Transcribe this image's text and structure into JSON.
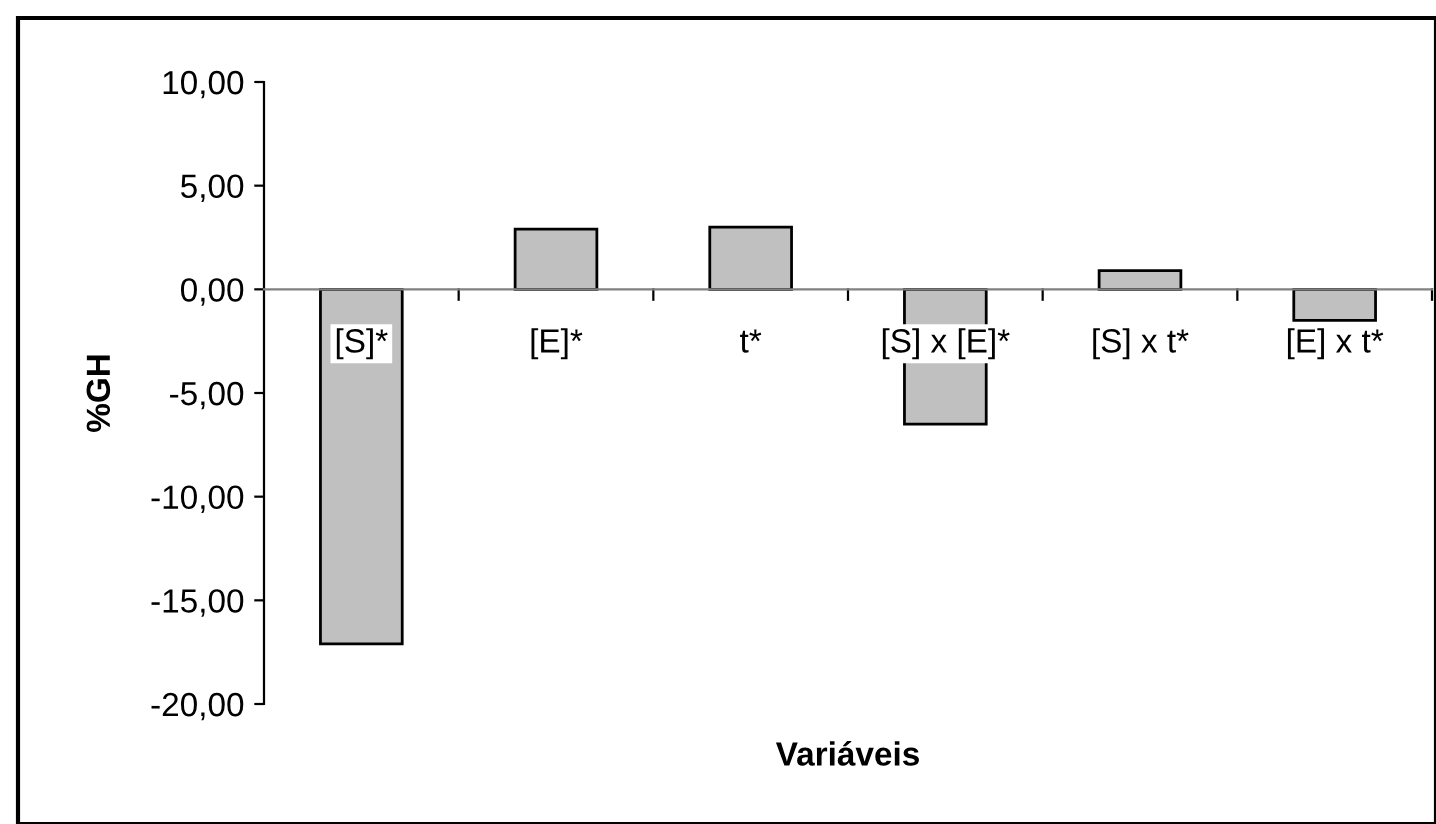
{
  "chart_data": {
    "type": "bar",
    "xlabel": "Variáveis",
    "ylabel": "%GH",
    "categories": [
      "[S]*",
      "[E]*",
      "t*",
      "[S] x [E]*",
      "[S] x t*",
      "[E] x t*"
    ],
    "values": [
      -17.1,
      2.9,
      3.0,
      -6.5,
      0.9,
      -1.5
    ],
    "color": "#c0c0c0",
    "ylim": [
      -20,
      10
    ],
    "yticks": [
      {
        "value": -20,
        "label": "-20,00"
      },
      {
        "value": -15,
        "label": "-15,00"
      },
      {
        "value": -10,
        "label": "-10,00"
      },
      {
        "value": -5,
        "label": "-5,00"
      },
      {
        "value": 0,
        "label": "0,00"
      },
      {
        "value": 5,
        "label": "5,00"
      },
      {
        "value": 10,
        "label": "10,00"
      }
    ],
    "grid": false,
    "legend": false
  }
}
